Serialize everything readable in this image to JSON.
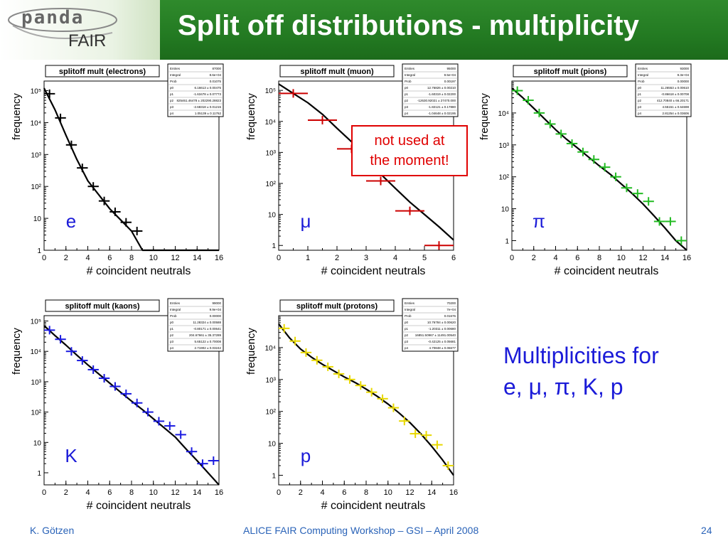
{
  "slide": {
    "title": "Split off distributions - multiplicity",
    "logo_top": "panda",
    "logo_bottom": "FAIR",
    "side_text_line1": "Multiplicities for",
    "side_text_line2": "e, μ, π, K, p",
    "annotation_line1": "not used at",
    "annotation_line2": "the moment!",
    "footer_left": "K. Götzen",
    "footer_center": "ALICE FAIR Computing Workshop – GSI – April 2008",
    "footer_right": "24"
  },
  "colors": {
    "header_green": "#237a22",
    "text_blue": "#1b1bd8",
    "footer_blue": "#2a63b8",
    "annotation_red": "#e00000"
  },
  "chart_data": [
    {
      "type": "scatter",
      "title": "splitoff mult (electrons)",
      "label": "e",
      "xlabel": "# coincident neutrals",
      "ylabel": "frequency",
      "xlim": [
        0,
        16
      ],
      "xticks": [
        0,
        2,
        4,
        6,
        8,
        10,
        12,
        14,
        16
      ],
      "ylog": true,
      "yticks": [
        1,
        10,
        100,
        1000,
        10000,
        100000
      ],
      "yticklabels": [
        "1",
        "10",
        "10²",
        "10³",
        "10⁴",
        "10⁵"
      ],
      "ylim": [
        1,
        200000
      ],
      "marker_color": "#000000",
      "points": [
        {
          "x": 0.5,
          "y": 80000,
          "dx": 0.5
        },
        {
          "x": 1.5,
          "y": 14000,
          "dx": 0.5
        },
        {
          "x": 2.5,
          "y": 2000,
          "dx": 0.5
        },
        {
          "x": 3.5,
          "y": 380,
          "dx": 0.5
        },
        {
          "x": 4.5,
          "y": 100,
          "dx": 0.5
        },
        {
          "x": 5.5,
          "y": 35,
          "dx": 0.5
        },
        {
          "x": 6.5,
          "y": 16,
          "dx": 0.5
        },
        {
          "x": 7.5,
          "y": 7.5,
          "dx": 0.5
        },
        {
          "x": 8.5,
          "y": 4,
          "dx": 0.5
        }
      ],
      "fit": [
        [
          0,
          120000
        ],
        [
          1,
          25000
        ],
        [
          2,
          4000
        ],
        [
          3,
          700
        ],
        [
          4,
          150
        ],
        [
          5,
          55
        ],
        [
          6,
          20
        ],
        [
          7,
          9
        ],
        [
          8,
          4
        ],
        [
          9,
          1
        ],
        [
          16,
          1
        ]
      ],
      "stats": [
        {
          "name": "Entries",
          "value": "87000"
        },
        {
          "name": "Integral",
          "value": "8.6e+04"
        },
        {
          "name": "Prob",
          "value": "0.01075"
        },
        {
          "name": "p0",
          "value": "6.16613 ± 0.00475"
        },
        {
          "name": "p1",
          "value": "-1.63478 ± 0.07773"
        },
        {
          "name": "p2",
          "value": "825461.46478 ± 202290.28823"
        },
        {
          "name": "p3",
          "value": "-2.68318 ± 0.01215"
        },
        {
          "name": "p4",
          "value": "1.05139 ± 0.11762"
        }
      ]
    },
    {
      "type": "scatter",
      "title": "splitoff mult (muon)",
      "label": "μ",
      "xlabel": "# coincident neutrals",
      "ylabel": "frequency",
      "xlim": [
        0,
        6
      ],
      "xticks": [
        0,
        1,
        2,
        3,
        4,
        5,
        6
      ],
      "ylog": true,
      "yticks": [
        1,
        10,
        100,
        1000,
        10000,
        100000
      ],
      "yticklabels": [
        "1",
        "10",
        "10²",
        "10³",
        "10⁴",
        "10⁵"
      ],
      "ylim": [
        0.7,
        200000
      ],
      "marker_color": "#cc0000",
      "points": [
        {
          "x": 0.5,
          "y": 80000,
          "dx": 0.5
        },
        {
          "x": 1.5,
          "y": 11000,
          "dx": 0.5
        },
        {
          "x": 2.5,
          "y": 1300,
          "dx": 0.5
        },
        {
          "x": 3.5,
          "y": 120,
          "dx": 0.5
        },
        {
          "x": 4.5,
          "y": 13,
          "dx": 0.5
        },
        {
          "x": 5.5,
          "y": 1,
          "dx": 0.5
        }
      ],
      "fit": [
        [
          0,
          160000
        ],
        [
          0.5,
          80000
        ],
        [
          1,
          40000
        ],
        [
          1.5,
          17000
        ],
        [
          2,
          6000
        ],
        [
          2.5,
          2200
        ],
        [
          3,
          700
        ],
        [
          3.5,
          200
        ],
        [
          4,
          70
        ],
        [
          4.5,
          25
        ],
        [
          5,
          10
        ],
        [
          5.5,
          4
        ],
        [
          6,
          1.5
        ]
      ],
      "stats": [
        {
          "name": "Entries",
          "value": "95000"
        },
        {
          "name": "Integral",
          "value": "9.5e+04"
        },
        {
          "name": "Prob",
          "value": "0.00197"
        },
        {
          "name": "p0",
          "value": "12.76826 ± 0.00210"
        },
        {
          "name": "p1",
          "value": "-1.60319 ± 0.02200"
        },
        {
          "name": "p2",
          "value": "-12630.92021 ± 27470.000"
        },
        {
          "name": "p3",
          "value": "-1.82121 ± 0.17880"
        },
        {
          "name": "p4",
          "value": "-1.04648 ± 0.02195"
        }
      ]
    },
    {
      "type": "scatter",
      "title": "splitoff mult (pions)",
      "label": "π",
      "xlabel": "# coincident neutrals",
      "ylabel": "frequency",
      "xlim": [
        0,
        16
      ],
      "xticks": [
        0,
        2,
        4,
        6,
        8,
        10,
        12,
        14,
        16
      ],
      "ylog": true,
      "yticks": [
        1,
        10,
        100,
        1000,
        10000
      ],
      "yticklabels": [
        "1",
        "10",
        "10²",
        "10³",
        "10⁴"
      ],
      "ylim": [
        0.5,
        100000
      ],
      "marker_color": "#22bb22",
      "points": [
        {
          "x": 0.5,
          "y": 50000,
          "dx": 0.5
        },
        {
          "x": 1.5,
          "y": 25000,
          "dx": 0.5
        },
        {
          "x": 2.5,
          "y": 10000,
          "dx": 0.5
        },
        {
          "x": 3.5,
          "y": 4500,
          "dx": 0.5
        },
        {
          "x": 4.5,
          "y": 2200,
          "dx": 0.5
        },
        {
          "x": 5.5,
          "y": 1100,
          "dx": 0.5
        },
        {
          "x": 6.5,
          "y": 600,
          "dx": 0.5
        },
        {
          "x": 7.5,
          "y": 350,
          "dx": 0.5
        },
        {
          "x": 8.5,
          "y": 200,
          "dx": 0.5
        },
        {
          "x": 9.5,
          "y": 100,
          "dx": 0.5
        },
        {
          "x": 10.5,
          "y": 45,
          "dx": 0.5
        },
        {
          "x": 11.5,
          "y": 30,
          "dx": 0.5
        },
        {
          "x": 12.5,
          "y": 17,
          "dx": 0.5
        },
        {
          "x": 13.5,
          "y": 4,
          "dx": 0.5
        },
        {
          "x": 14.5,
          "y": 4,
          "dx": 0.5
        },
        {
          "x": 15.5,
          "y": 1,
          "dx": 0.5
        }
      ],
      "fit": [
        [
          0,
          60000
        ],
        [
          1,
          30000
        ],
        [
          2,
          14000
        ],
        [
          3,
          6500
        ],
        [
          4,
          3000
        ],
        [
          5,
          1500
        ],
        [
          6,
          800
        ],
        [
          7,
          420
        ],
        [
          8,
          220
        ],
        [
          9,
          120
        ],
        [
          10,
          60
        ],
        [
          11,
          30
        ],
        [
          12,
          14
        ],
        [
          13,
          6
        ],
        [
          14,
          2.5
        ],
        [
          15,
          1
        ],
        [
          16,
          0.5
        ]
      ],
      "stats": [
        {
          "name": "Entries",
          "value": "93000"
        },
        {
          "name": "Integral",
          "value": "9.3e+04"
        },
        {
          "name": "Prob",
          "value": "0.00000"
        },
        {
          "name": "p0",
          "value": "11.26553 ± 0.00610"
        },
        {
          "name": "p1",
          "value": "-0.86618 ± 0.00708"
        },
        {
          "name": "p2",
          "value": "412.70840 ± 66.20171"
        },
        {
          "name": "p3",
          "value": "4.55151 ± 0.64698"
        },
        {
          "name": "p4",
          "value": "2.81254 ± 0.03606"
        }
      ]
    },
    {
      "type": "scatter",
      "title": "splitoff mult (kaons)",
      "label": "K",
      "xlabel": "# coincident neutrals",
      "ylabel": "frequency",
      "xlim": [
        0,
        16
      ],
      "xticks": [
        0,
        2,
        4,
        6,
        8,
        10,
        12,
        14,
        16
      ],
      "ylog": true,
      "yticks": [
        1,
        10,
        100,
        1000,
        10000,
        100000
      ],
      "yticklabels": [
        "1",
        "10",
        "10²",
        "10³",
        "10⁴",
        "10⁵"
      ],
      "ylim": [
        0.4,
        150000
      ],
      "marker_color": "#1a1ae0",
      "points": [
        {
          "x": 0.5,
          "y": 50000,
          "dx": 0.5
        },
        {
          "x": 1.5,
          "y": 25000,
          "dx": 0.5
        },
        {
          "x": 2.5,
          "y": 10000,
          "dx": 0.5
        },
        {
          "x": 3.5,
          "y": 5000,
          "dx": 0.5
        },
        {
          "x": 4.5,
          "y": 2500,
          "dx": 0.5
        },
        {
          "x": 5.5,
          "y": 1300,
          "dx": 0.5
        },
        {
          "x": 6.5,
          "y": 700,
          "dx": 0.5
        },
        {
          "x": 7.5,
          "y": 400,
          "dx": 0.5
        },
        {
          "x": 8.5,
          "y": 200,
          "dx": 0.5
        },
        {
          "x": 9.5,
          "y": 100,
          "dx": 0.5
        },
        {
          "x": 10.5,
          "y": 50,
          "dx": 0.5
        },
        {
          "x": 11.5,
          "y": 35,
          "dx": 0.5
        },
        {
          "x": 12.5,
          "y": 18,
          "dx": 0.5
        },
        {
          "x": 13.5,
          "y": 5,
          "dx": 0.5
        },
        {
          "x": 14.5,
          "y": 2,
          "dx": 0.5
        },
        {
          "x": 15.5,
          "y": 2.5,
          "dx": 0.5
        }
      ],
      "fit": [
        [
          0,
          70000
        ],
        [
          1,
          33000
        ],
        [
          2,
          16000
        ],
        [
          3,
          7500
        ],
        [
          4,
          3600
        ],
        [
          5,
          1800
        ],
        [
          6,
          900
        ],
        [
          7,
          450
        ],
        [
          8,
          230
        ],
        [
          9,
          120
        ],
        [
          10,
          60
        ],
        [
          11,
          30
        ],
        [
          12,
          15
        ],
        [
          13,
          6
        ],
        [
          14,
          2.5
        ],
        [
          15,
          1
        ],
        [
          16,
          0.4
        ]
      ],
      "stats": [
        {
          "name": "Entries",
          "value": "99000"
        },
        {
          "name": "Integral",
          "value": "9.9e+04"
        },
        {
          "name": "Prob",
          "value": "0.00000"
        },
        {
          "name": "p0",
          "value": "11.28324 ± 0.00588"
        },
        {
          "name": "p1",
          "value": "-0.80171 ± 0.00641"
        },
        {
          "name": "p2",
          "value": "204.67661 ± 35.37289"
        },
        {
          "name": "p3",
          "value": "5.65122 ± 0.70008"
        },
        {
          "name": "p4",
          "value": "2.71902 ± 0.03242"
        }
      ]
    },
    {
      "type": "scatter",
      "title": "splitoff mult (protons)",
      "label": "p",
      "xlabel": "# coincident neutrals",
      "ylabel": "frequency",
      "xlim": [
        0,
        16
      ],
      "xticks": [
        0,
        2,
        4,
        6,
        8,
        10,
        12,
        14,
        16
      ],
      "ylog": true,
      "yticks": [
        1,
        10,
        100,
        1000,
        10000
      ],
      "yticklabels": [
        "1",
        "10",
        "10²",
        "10³",
        "10⁴"
      ],
      "ylim": [
        0.5,
        100000
      ],
      "marker_color": "#e8d800",
      "points": [
        {
          "x": 0.5,
          "y": 40000,
          "dx": 0.5
        },
        {
          "x": 1.5,
          "y": 16000,
          "dx": 0.5
        },
        {
          "x": 2.5,
          "y": 7000,
          "dx": 0.5
        },
        {
          "x": 3.5,
          "y": 4000,
          "dx": 0.5
        },
        {
          "x": 4.5,
          "y": 2500,
          "dx": 0.5
        },
        {
          "x": 5.5,
          "y": 1500,
          "dx": 0.5
        },
        {
          "x": 6.5,
          "y": 1000,
          "dx": 0.5
        },
        {
          "x": 7.5,
          "y": 650,
          "dx": 0.5
        },
        {
          "x": 8.5,
          "y": 400,
          "dx": 0.5
        },
        {
          "x": 9.5,
          "y": 250,
          "dx": 0.5
        },
        {
          "x": 10.5,
          "y": 130,
          "dx": 0.5
        },
        {
          "x": 11.5,
          "y": 50,
          "dx": 0.5
        },
        {
          "x": 12.5,
          "y": 20,
          "dx": 0.5
        },
        {
          "x": 13.5,
          "y": 18,
          "dx": 0.5
        },
        {
          "x": 14.5,
          "y": 9,
          "dx": 0.5
        },
        {
          "x": 15.5,
          "y": 2,
          "dx": 0.5
        }
      ],
      "fit": [
        [
          0,
          55000
        ],
        [
          1,
          20000
        ],
        [
          2,
          9000
        ],
        [
          3,
          5000
        ],
        [
          4,
          3000
        ],
        [
          5,
          1900
        ],
        [
          6,
          1200
        ],
        [
          7,
          800
        ],
        [
          8,
          500
        ],
        [
          9,
          300
        ],
        [
          10,
          170
        ],
        [
          11,
          90
        ],
        [
          12,
          45
        ],
        [
          13,
          20
        ],
        [
          14,
          8
        ],
        [
          15,
          3
        ],
        [
          16,
          1
        ]
      ],
      "stats": [
        {
          "name": "Entries",
          "value": "70200"
        },
        {
          "name": "Integral",
          "value": "7e+04"
        },
        {
          "name": "Prob",
          "value": "0.01676"
        },
        {
          "name": "p0",
          "value": "10.76784 ± 0.00620"
        },
        {
          "name": "p1",
          "value": "-1.20311 ± 0.00680"
        },
        {
          "name": "p2",
          "value": "16851.50967 ± 11491.00540"
        },
        {
          "name": "p3",
          "value": "-0.42125 ± 0.05681"
        },
        {
          "name": "p4",
          "value": "4.70848 ± 0.06677"
        }
      ]
    }
  ]
}
